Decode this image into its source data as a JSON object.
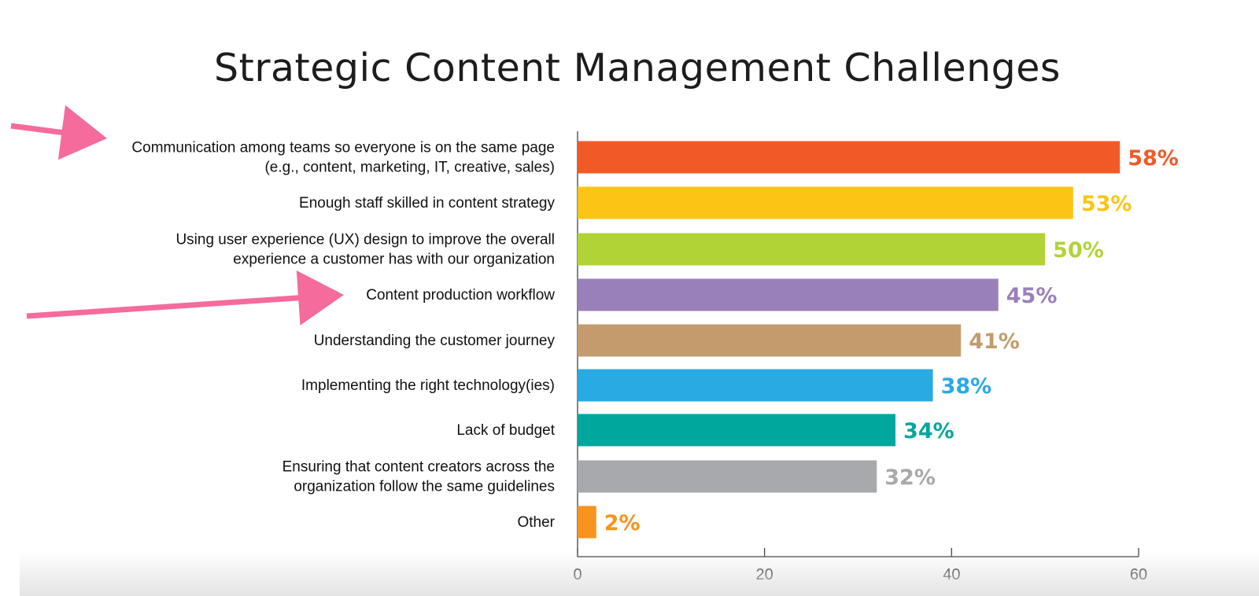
{
  "chart_data": {
    "type": "bar",
    "orientation": "horizontal",
    "title": "Strategic Content Management Challenges",
    "xlabel": "",
    "ylabel": "",
    "xlim": [
      0,
      60
    ],
    "x_ticks": [
      0,
      20,
      40,
      60
    ],
    "grid": false,
    "legend": "none",
    "categories": [
      [
        "Communication among teams so everyone is on the same page",
        "(e.g., content, marketing, IT, creative, sales)"
      ],
      [
        "Enough staff skilled in content strategy"
      ],
      [
        "Using user experience (UX) design to improve the overall",
        "experience a customer has with our organization"
      ],
      [
        "Content production workflow"
      ],
      [
        "Understanding the customer journey"
      ],
      [
        "Implementing the right technology(ies)"
      ],
      [
        "Lack of budget"
      ],
      [
        "Ensuring that content creators across the",
        "organization follow the same guidelines"
      ],
      [
        "Other"
      ]
    ],
    "values": [
      58,
      53,
      50,
      45,
      41,
      38,
      34,
      32,
      2
    ],
    "value_labels": [
      "58%",
      "53%",
      "50%",
      "45%",
      "41%",
      "38%",
      "34%",
      "32%",
      "2%"
    ],
    "colors": [
      "#f15a27",
      "#fcc516",
      "#b1d335",
      "#9a80bb",
      "#c49b6c",
      "#29aae2",
      "#00a79d",
      "#a7a9ac",
      "#f7941d"
    ],
    "annotations": [
      {
        "type": "arrow",
        "target_category_index": 0,
        "color": "#f46b9c"
      },
      {
        "type": "arrow",
        "target_category_index": 3,
        "color": "#f46b9c"
      }
    ]
  }
}
